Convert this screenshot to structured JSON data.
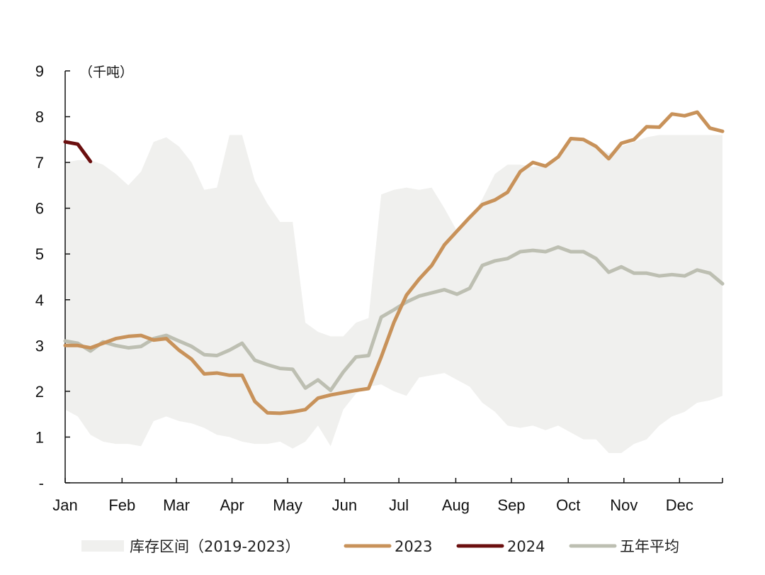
{
  "chart_data": {
    "type": "line",
    "unit_label": "（千吨）",
    "ylim": [
      0,
      9
    ],
    "yticks": [
      "-",
      "1",
      "2",
      "3",
      "4",
      "5",
      "6",
      "7",
      "8",
      "9"
    ],
    "x_range_weeks": [
      1,
      53
    ],
    "month_labels": [
      {
        "label": "Jan",
        "week": 1
      },
      {
        "label": "Feb",
        "week": 5.5
      },
      {
        "label": "Mar",
        "week": 9.8
      },
      {
        "label": "Apr",
        "week": 14.2
      },
      {
        "label": "May",
        "week": 18.6
      },
      {
        "label": "Jun",
        "week": 23.1
      },
      {
        "label": "Jul",
        "week": 27.4
      },
      {
        "label": "Aug",
        "week": 31.9
      },
      {
        "label": "Sep",
        "week": 36.3
      },
      {
        "label": "Oct",
        "week": 40.8
      },
      {
        "label": "Nov",
        "week": 45.2
      },
      {
        "label": "Dec",
        "week": 49.6
      }
    ],
    "colors": {
      "band": "#f0f0ee",
      "s2023": "#c8925a",
      "s2024": "#6b0f0f",
      "avg": "#bdbfb2",
      "axis": "#111111"
    },
    "range_band": {
      "name": "库存区间（2019-2023）",
      "upper": [
        [
          1,
          7.0
        ],
        [
          2,
          7.05
        ],
        [
          3,
          7.05
        ],
        [
          4,
          6.95
        ],
        [
          5,
          6.75
        ],
        [
          6,
          6.5
        ],
        [
          7,
          6.8
        ],
        [
          8,
          7.45
        ],
        [
          9,
          7.55
        ],
        [
          10,
          7.35
        ],
        [
          11,
          7.0
        ],
        [
          12,
          6.4
        ],
        [
          13,
          6.45
        ],
        [
          14,
          7.6
        ],
        [
          15,
          7.6
        ],
        [
          16,
          6.6
        ],
        [
          17,
          6.1
        ],
        [
          18,
          5.7
        ],
        [
          19,
          5.7
        ],
        [
          20,
          3.5
        ],
        [
          21,
          3.3
        ],
        [
          22,
          3.2
        ],
        [
          23,
          3.2
        ],
        [
          24,
          3.5
        ],
        [
          25,
          3.6
        ],
        [
          26,
          6.3
        ],
        [
          27,
          6.4
        ],
        [
          28,
          6.45
        ],
        [
          29,
          6.4
        ],
        [
          30,
          6.45
        ],
        [
          31,
          6.0
        ],
        [
          32,
          5.5
        ],
        [
          33,
          5.75
        ],
        [
          34,
          6.2
        ],
        [
          35,
          6.75
        ],
        [
          36,
          6.95
        ],
        [
          37,
          6.95
        ],
        [
          38,
          6.9
        ],
        [
          39,
          6.95
        ],
        [
          40,
          7.05
        ],
        [
          41,
          7.5
        ],
        [
          42,
          7.5
        ],
        [
          43,
          7.35
        ],
        [
          44,
          7.2
        ],
        [
          45,
          7.35
        ],
        [
          46,
          7.45
        ],
        [
          47,
          7.55
        ],
        [
          48,
          7.6
        ],
        [
          49,
          7.6
        ],
        [
          50,
          7.6
        ],
        [
          51,
          7.6
        ],
        [
          52,
          7.6
        ],
        [
          53,
          7.6
        ]
      ],
      "lower": [
        [
          1,
          1.6
        ],
        [
          2,
          1.45
        ],
        [
          3,
          1.05
        ],
        [
          4,
          0.9
        ],
        [
          5,
          0.85
        ],
        [
          6,
          0.85
        ],
        [
          7,
          0.8
        ],
        [
          8,
          1.35
        ],
        [
          9,
          1.45
        ],
        [
          10,
          1.35
        ],
        [
          11,
          1.3
        ],
        [
          12,
          1.2
        ],
        [
          13,
          1.05
        ],
        [
          14,
          1.0
        ],
        [
          15,
          0.9
        ],
        [
          16,
          0.85
        ],
        [
          17,
          0.85
        ],
        [
          18,
          0.9
        ],
        [
          19,
          0.75
        ],
        [
          20,
          0.9
        ],
        [
          21,
          1.25
        ],
        [
          22,
          0.8
        ],
        [
          23,
          1.6
        ],
        [
          24,
          1.95
        ],
        [
          25,
          2.1
        ],
        [
          26,
          2.15
        ],
        [
          27,
          2.0
        ],
        [
          28,
          1.9
        ],
        [
          29,
          2.3
        ],
        [
          30,
          2.35
        ],
        [
          31,
          2.4
        ],
        [
          32,
          2.25
        ],
        [
          33,
          2.1
        ],
        [
          34,
          1.75
        ],
        [
          35,
          1.55
        ],
        [
          36,
          1.25
        ],
        [
          37,
          1.2
        ],
        [
          38,
          1.25
        ],
        [
          39,
          1.15
        ],
        [
          40,
          1.25
        ],
        [
          41,
          1.1
        ],
        [
          42,
          0.95
        ],
        [
          43,
          0.95
        ],
        [
          44,
          0.65
        ],
        [
          45,
          0.65
        ],
        [
          46,
          0.85
        ],
        [
          47,
          0.95
        ],
        [
          48,
          1.25
        ],
        [
          49,
          1.45
        ],
        [
          50,
          1.55
        ],
        [
          51,
          1.75
        ],
        [
          52,
          1.8
        ],
        [
          53,
          1.9
        ]
      ]
    },
    "series": [
      {
        "name": "2023",
        "points": [
          [
            1,
            3.0
          ],
          [
            2,
            3.0
          ],
          [
            3,
            2.95
          ],
          [
            4,
            3.05
          ],
          [
            5,
            3.15
          ],
          [
            6,
            3.2
          ],
          [
            7,
            3.22
          ],
          [
            8,
            3.12
          ],
          [
            9,
            3.15
          ],
          [
            10,
            2.9
          ],
          [
            11,
            2.7
          ],
          [
            12,
            2.38
          ],
          [
            13,
            2.4
          ],
          [
            14,
            2.35
          ],
          [
            15,
            2.35
          ],
          [
            16,
            1.78
          ],
          [
            17,
            1.53
          ],
          [
            18,
            1.52
          ],
          [
            19,
            1.55
          ],
          [
            20,
            1.6
          ],
          [
            21,
            1.85
          ],
          [
            22,
            1.92
          ],
          [
            23,
            1.97
          ],
          [
            24,
            2.02
          ],
          [
            25,
            2.06
          ],
          [
            26,
            2.75
          ],
          [
            27,
            3.5
          ],
          [
            28,
            4.1
          ],
          [
            29,
            4.45
          ],
          [
            30,
            4.75
          ],
          [
            31,
            5.2
          ],
          [
            32,
            5.5
          ],
          [
            33,
            5.8
          ],
          [
            34,
            6.08
          ],
          [
            35,
            6.18
          ],
          [
            36,
            6.35
          ],
          [
            37,
            6.8
          ],
          [
            38,
            7.0
          ],
          [
            39,
            6.92
          ],
          [
            40,
            7.12
          ],
          [
            41,
            7.52
          ],
          [
            42,
            7.5
          ],
          [
            43,
            7.35
          ],
          [
            44,
            7.08
          ],
          [
            45,
            7.42
          ],
          [
            46,
            7.5
          ],
          [
            47,
            7.78
          ],
          [
            48,
            7.77
          ],
          [
            49,
            8.06
          ],
          [
            50,
            8.02
          ],
          [
            51,
            8.1
          ],
          [
            52,
            7.75
          ],
          [
            53,
            7.68
          ]
        ]
      },
      {
        "name": "2024",
        "points": [
          [
            1,
            7.45
          ],
          [
            2,
            7.4
          ],
          [
            3,
            7.02
          ]
        ]
      },
      {
        "name": "五年平均",
        "points": [
          [
            1,
            3.1
          ],
          [
            2,
            3.05
          ],
          [
            3,
            2.88
          ],
          [
            4,
            3.08
          ],
          [
            5,
            3.0
          ],
          [
            6,
            2.95
          ],
          [
            7,
            2.98
          ],
          [
            8,
            3.15
          ],
          [
            9,
            3.22
          ],
          [
            10,
            3.1
          ],
          [
            11,
            2.98
          ],
          [
            12,
            2.8
          ],
          [
            13,
            2.78
          ],
          [
            14,
            2.9
          ],
          [
            15,
            3.05
          ],
          [
            16,
            2.68
          ],
          [
            17,
            2.58
          ],
          [
            18,
            2.5
          ],
          [
            19,
            2.48
          ],
          [
            20,
            2.07
          ],
          [
            21,
            2.25
          ],
          [
            22,
            2.02
          ],
          [
            23,
            2.42
          ],
          [
            24,
            2.75
          ],
          [
            25,
            2.78
          ],
          [
            26,
            3.62
          ],
          [
            27,
            3.78
          ],
          [
            28,
            3.95
          ],
          [
            29,
            4.08
          ],
          [
            30,
            4.15
          ],
          [
            31,
            4.22
          ],
          [
            32,
            4.12
          ],
          [
            33,
            4.25
          ],
          [
            34,
            4.75
          ],
          [
            35,
            4.85
          ],
          [
            36,
            4.9
          ],
          [
            37,
            5.05
          ],
          [
            38,
            5.08
          ],
          [
            39,
            5.05
          ],
          [
            40,
            5.15
          ],
          [
            41,
            5.05
          ],
          [
            42,
            5.05
          ],
          [
            43,
            4.9
          ],
          [
            44,
            4.6
          ],
          [
            45,
            4.72
          ],
          [
            46,
            4.58
          ],
          [
            47,
            4.58
          ],
          [
            48,
            4.52
          ],
          [
            49,
            4.55
          ],
          [
            50,
            4.52
          ],
          [
            51,
            4.65
          ],
          [
            52,
            4.58
          ],
          [
            53,
            4.35
          ]
        ]
      }
    ],
    "legend": [
      {
        "label": "库存区间（2019-2023）",
        "kind": "band"
      },
      {
        "label": "2023",
        "kind": "s2023"
      },
      {
        "label": "2024",
        "kind": "s2024"
      },
      {
        "label": "五年平均",
        "kind": "avg"
      }
    ]
  }
}
